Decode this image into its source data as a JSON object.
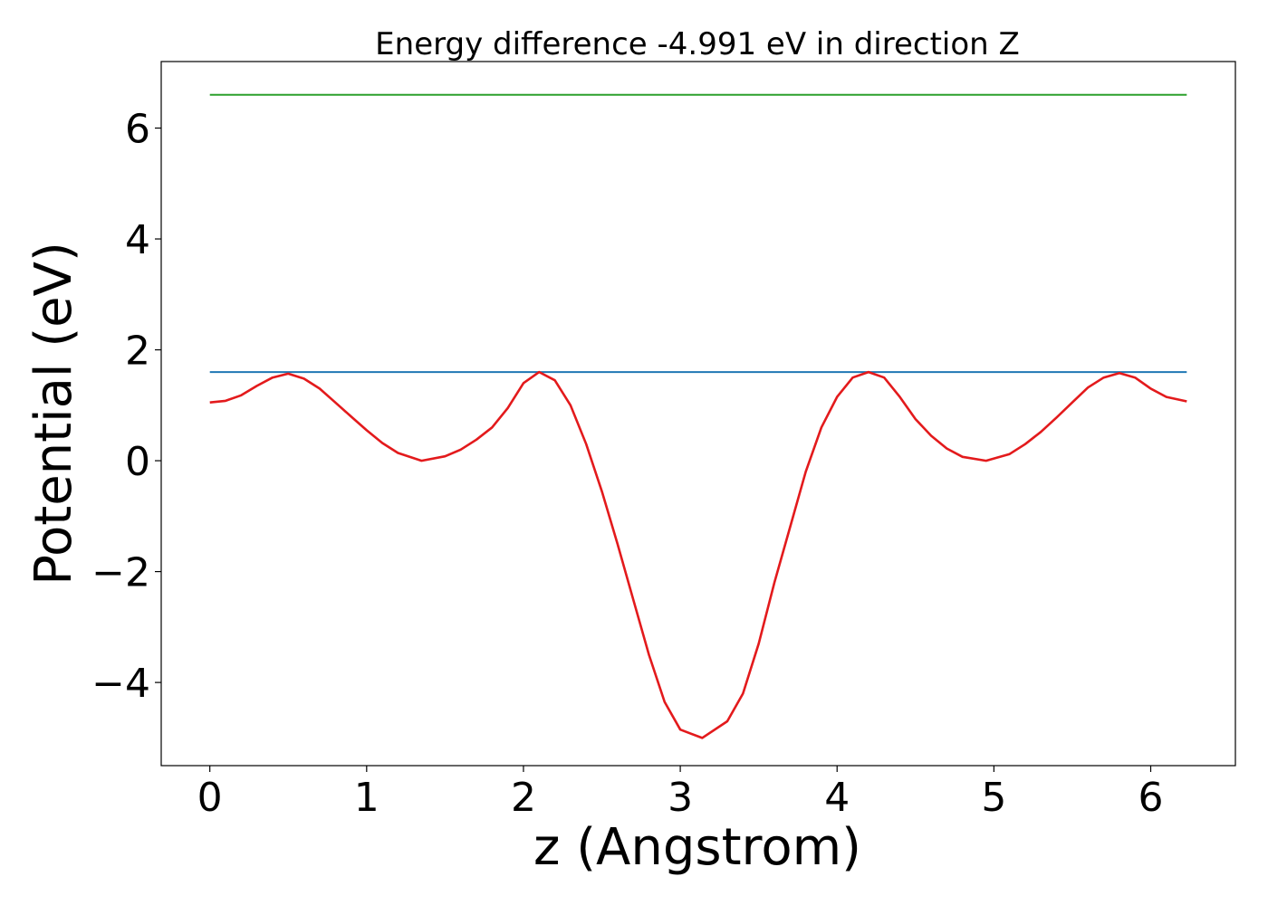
{
  "chart_data": {
    "type": "line",
    "title": "Energy difference -4.991 eV in direction Z",
    "xlabel": "z (Angstrom)",
    "ylabel": "Potential (eV)",
    "xlim": [
      -0.31,
      6.54
    ],
    "ylim": [
      -5.5,
      7.2
    ],
    "xticks": [
      0,
      1,
      2,
      3,
      4,
      5,
      6
    ],
    "xtick_labels": [
      "0",
      "1",
      "2",
      "3",
      "4",
      "5",
      "6"
    ],
    "yticks": [
      -4,
      -2,
      0,
      2,
      4,
      6
    ],
    "ytick_labels": [
      "−4",
      "−2",
      "0",
      "2",
      "4",
      "6"
    ],
    "grid": false,
    "series": [
      {
        "color": "#2ca02c",
        "x": [
          0,
          6.23
        ],
        "y": [
          6.6,
          6.6
        ]
      },
      {
        "color": "#1f77b4",
        "x": [
          0,
          6.23
        ],
        "y": [
          1.6,
          1.6
        ]
      },
      {
        "color": "#e31a1c",
        "x": [
          0,
          0.1,
          0.2,
          0.3,
          0.4,
          0.5,
          0.6,
          0.7,
          0.8,
          0.9,
          1.0,
          1.1,
          1.2,
          1.35,
          1.5,
          1.6,
          1.7,
          1.8,
          1.9,
          2.0,
          2.1,
          2.2,
          2.3,
          2.4,
          2.5,
          2.6,
          2.7,
          2.8,
          2.9,
          3.0,
          3.14,
          3.3,
          3.4,
          3.5,
          3.6,
          3.7,
          3.8,
          3.9,
          4.0,
          4.1,
          4.2,
          4.3,
          4.4,
          4.5,
          4.6,
          4.7,
          4.8,
          4.95,
          5.1,
          5.2,
          5.3,
          5.4,
          5.5,
          5.6,
          5.7,
          5.8,
          5.9,
          6.0,
          6.1,
          6.23
        ],
        "y": [
          1.05,
          1.08,
          1.18,
          1.35,
          1.5,
          1.57,
          1.48,
          1.3,
          1.05,
          0.8,
          0.55,
          0.32,
          0.14,
          0.0,
          0.08,
          0.2,
          0.38,
          0.6,
          0.95,
          1.4,
          1.6,
          1.45,
          1.0,
          0.3,
          -0.55,
          -1.5,
          -2.5,
          -3.5,
          -4.35,
          -4.85,
          -5.0,
          -4.7,
          -4.2,
          -3.3,
          -2.2,
          -1.2,
          -0.2,
          0.6,
          1.15,
          1.5,
          1.6,
          1.5,
          1.15,
          0.75,
          0.45,
          0.22,
          0.07,
          0.0,
          0.12,
          0.3,
          0.52,
          0.78,
          1.05,
          1.32,
          1.5,
          1.58,
          1.5,
          1.3,
          1.15,
          1.07
        ]
      }
    ]
  }
}
